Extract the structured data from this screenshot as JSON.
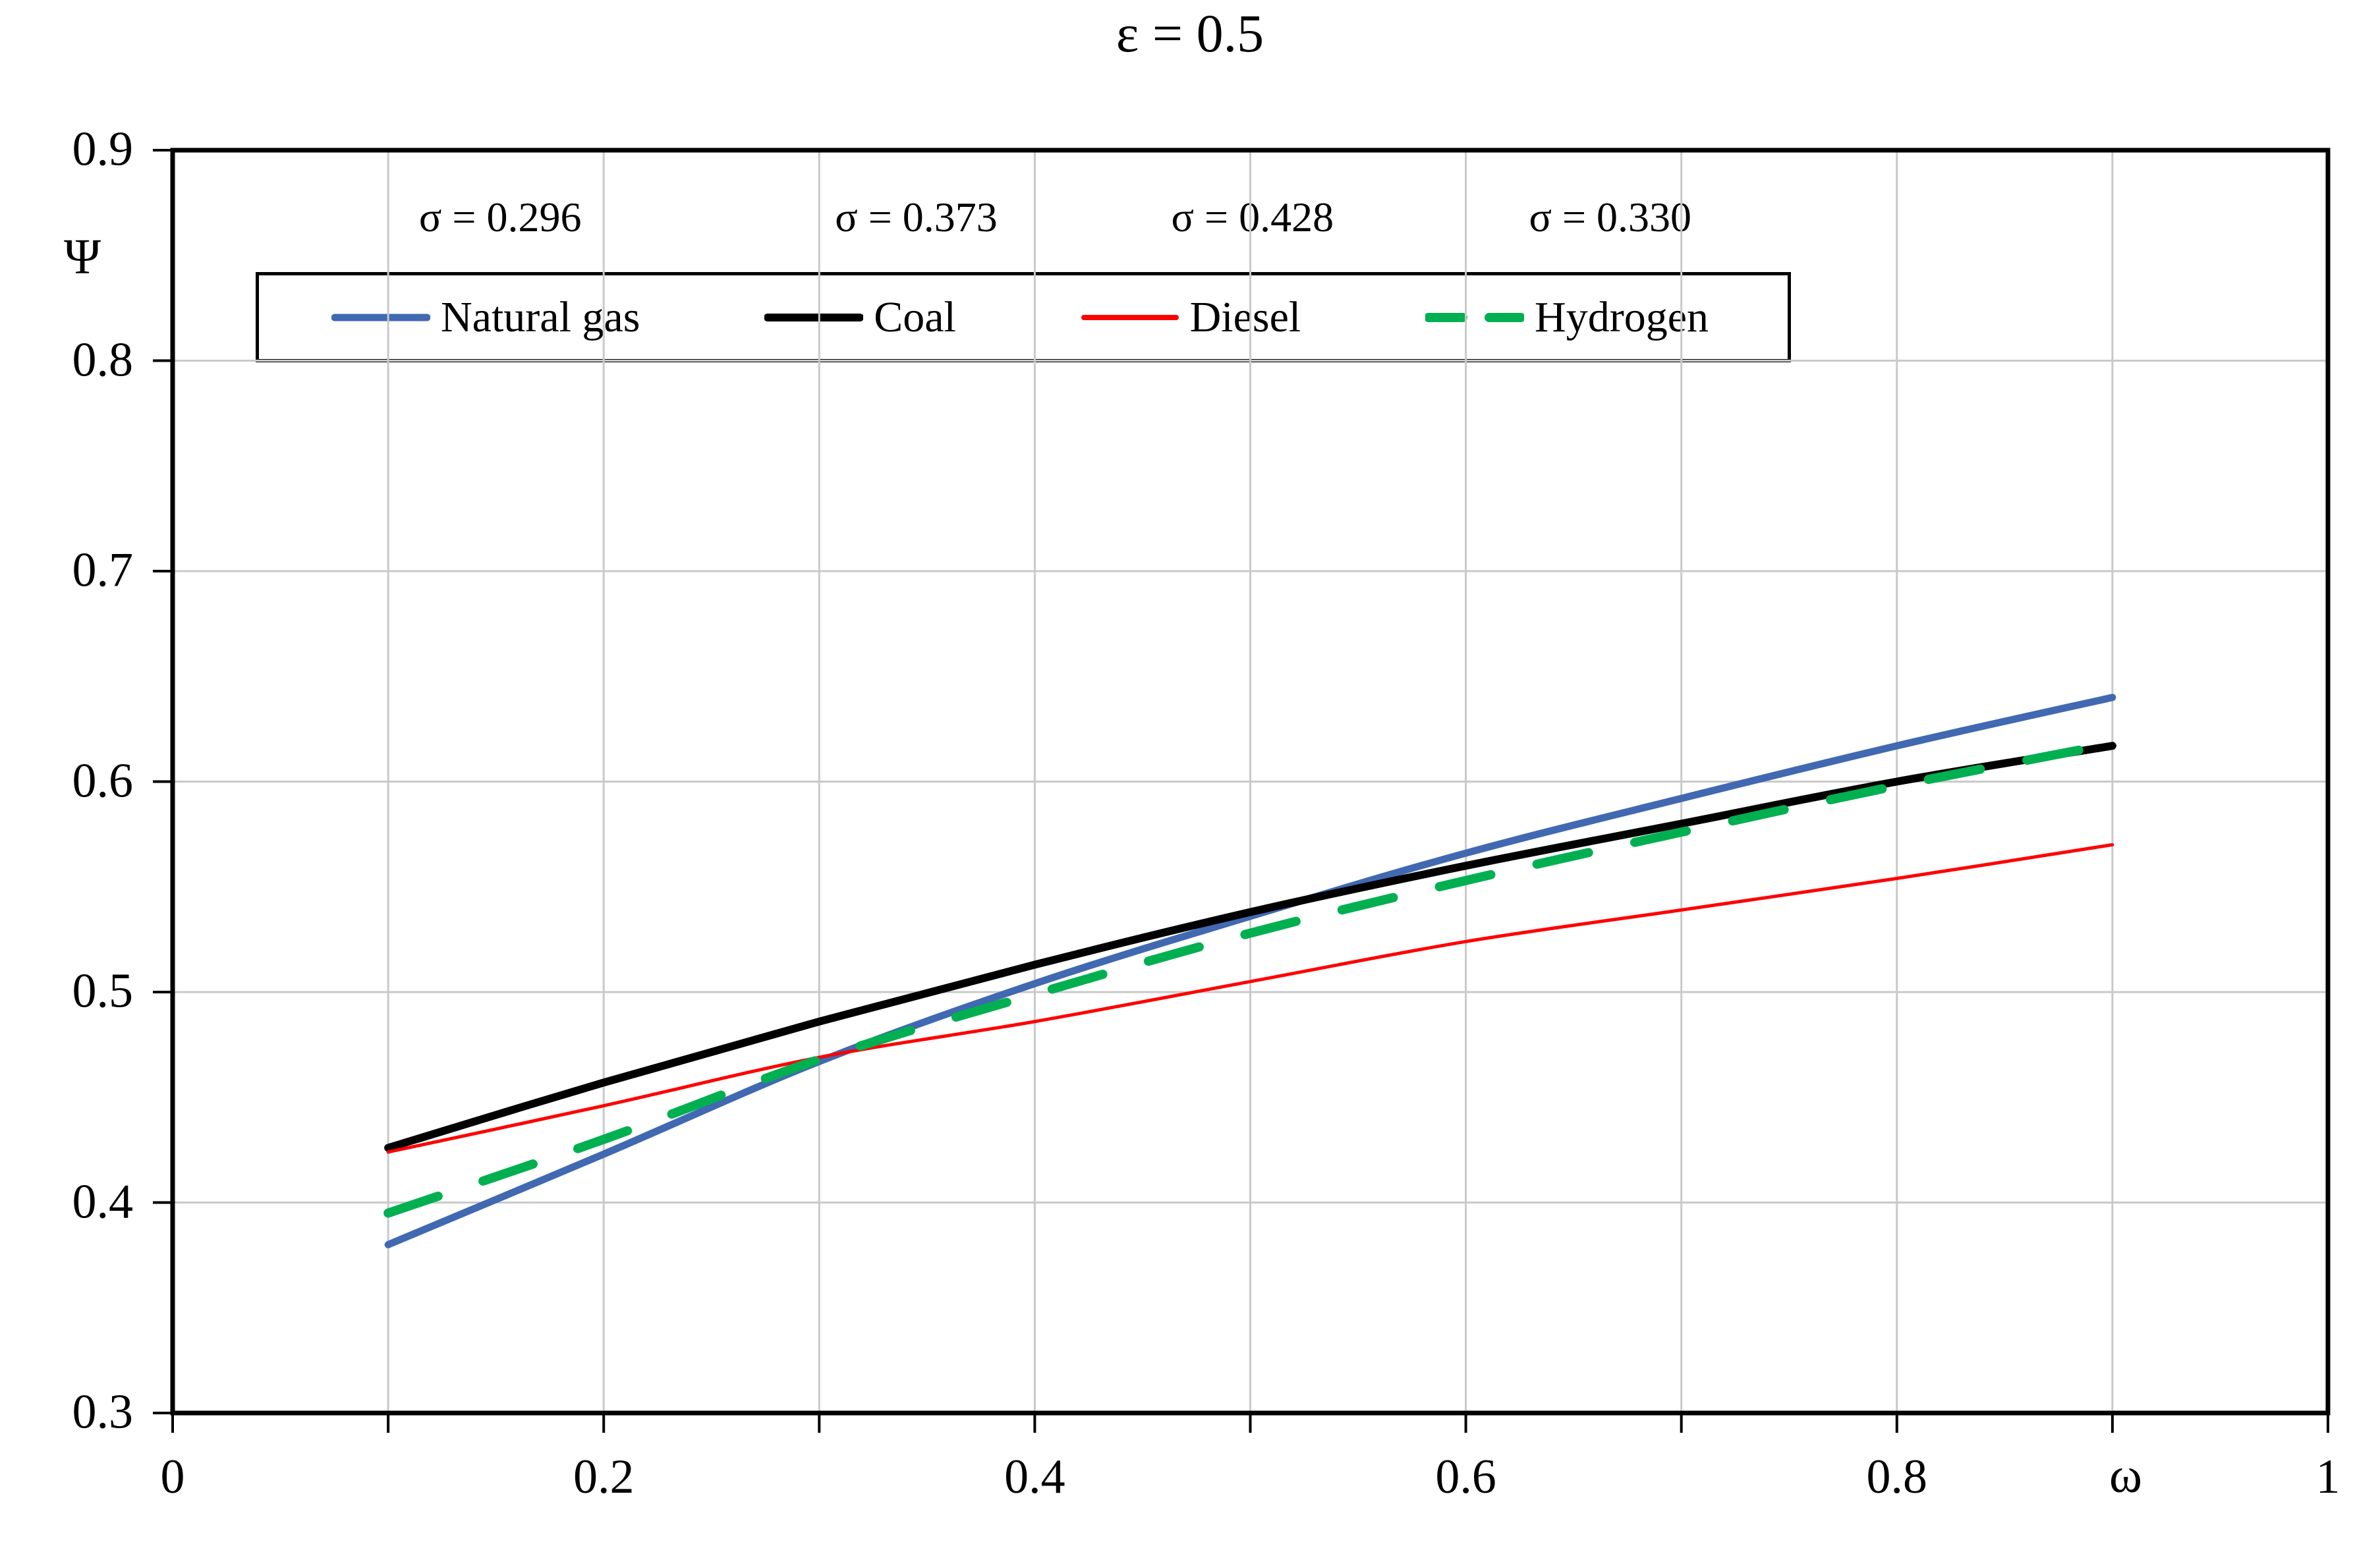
{
  "chart_data": {
    "type": "line",
    "title": "ε = 0.5",
    "xlabel": "ω",
    "ylabel": "Ψ",
    "xlim": [
      0,
      1
    ],
    "ylim": [
      0.3,
      0.9
    ],
    "grid": true,
    "grid_step": 0.1,
    "xticks": [
      0,
      0.2,
      0.4,
      0.6,
      0.8,
      1
    ],
    "xtick_labels": [
      "0",
      "0.2",
      "0.4",
      "0.6",
      "0.8",
      "1"
    ],
    "yticks": [
      0.9,
      0.8,
      0.7,
      0.6,
      0.5,
      0.4,
      0.3
    ],
    "ytick_labels": [
      "0.9",
      "0.8",
      "0.7",
      "0.6",
      "0.5",
      "0.4",
      "0.3"
    ],
    "legend_position": "top-inside-border",
    "x": [
      0.1,
      0.2,
      0.3,
      0.4,
      0.5,
      0.6,
      0.7,
      0.8,
      0.9
    ],
    "series": [
      {
        "name": "Natural gas",
        "color": "#4169B2",
        "dashed": false,
        "line_width": 11,
        "values": [
          0.38,
          0.423,
          0.467,
          0.504,
          0.536,
          0.566,
          0.592,
          0.617,
          0.64
        ]
      },
      {
        "name": "Coal",
        "color": "#000000",
        "dashed": false,
        "line_width": 12,
        "values": [
          0.426,
          0.457,
          0.486,
          0.513,
          0.538,
          0.56,
          0.58,
          0.6,
          0.617
        ]
      },
      {
        "name": "Diesel",
        "color": "#FF0000",
        "dashed": false,
        "line_width": 5,
        "values": [
          0.424,
          0.446,
          0.469,
          0.486,
          0.505,
          0.524,
          0.539,
          0.554,
          0.57
        ]
      },
      {
        "name": "Hydrogen",
        "color": "#00B050",
        "dashed": true,
        "line_width": 14,
        "values": [
          0.395,
          0.43,
          0.468,
          0.499,
          0.528,
          0.553,
          0.576,
          0.598,
          0.618
        ]
      }
    ],
    "annotations": [
      {
        "text": "σ = 0.296",
        "x": 0.152
      },
      {
        "text": "σ = 0.373",
        "x": 0.345
      },
      {
        "text": "σ = 0.428",
        "x": 0.501
      },
      {
        "text": "σ = 0.330",
        "x": 0.667
      }
    ],
    "colors": {
      "grid": "#C9C9C9",
      "frame": "#000000",
      "background": "#FFFFFF"
    }
  }
}
